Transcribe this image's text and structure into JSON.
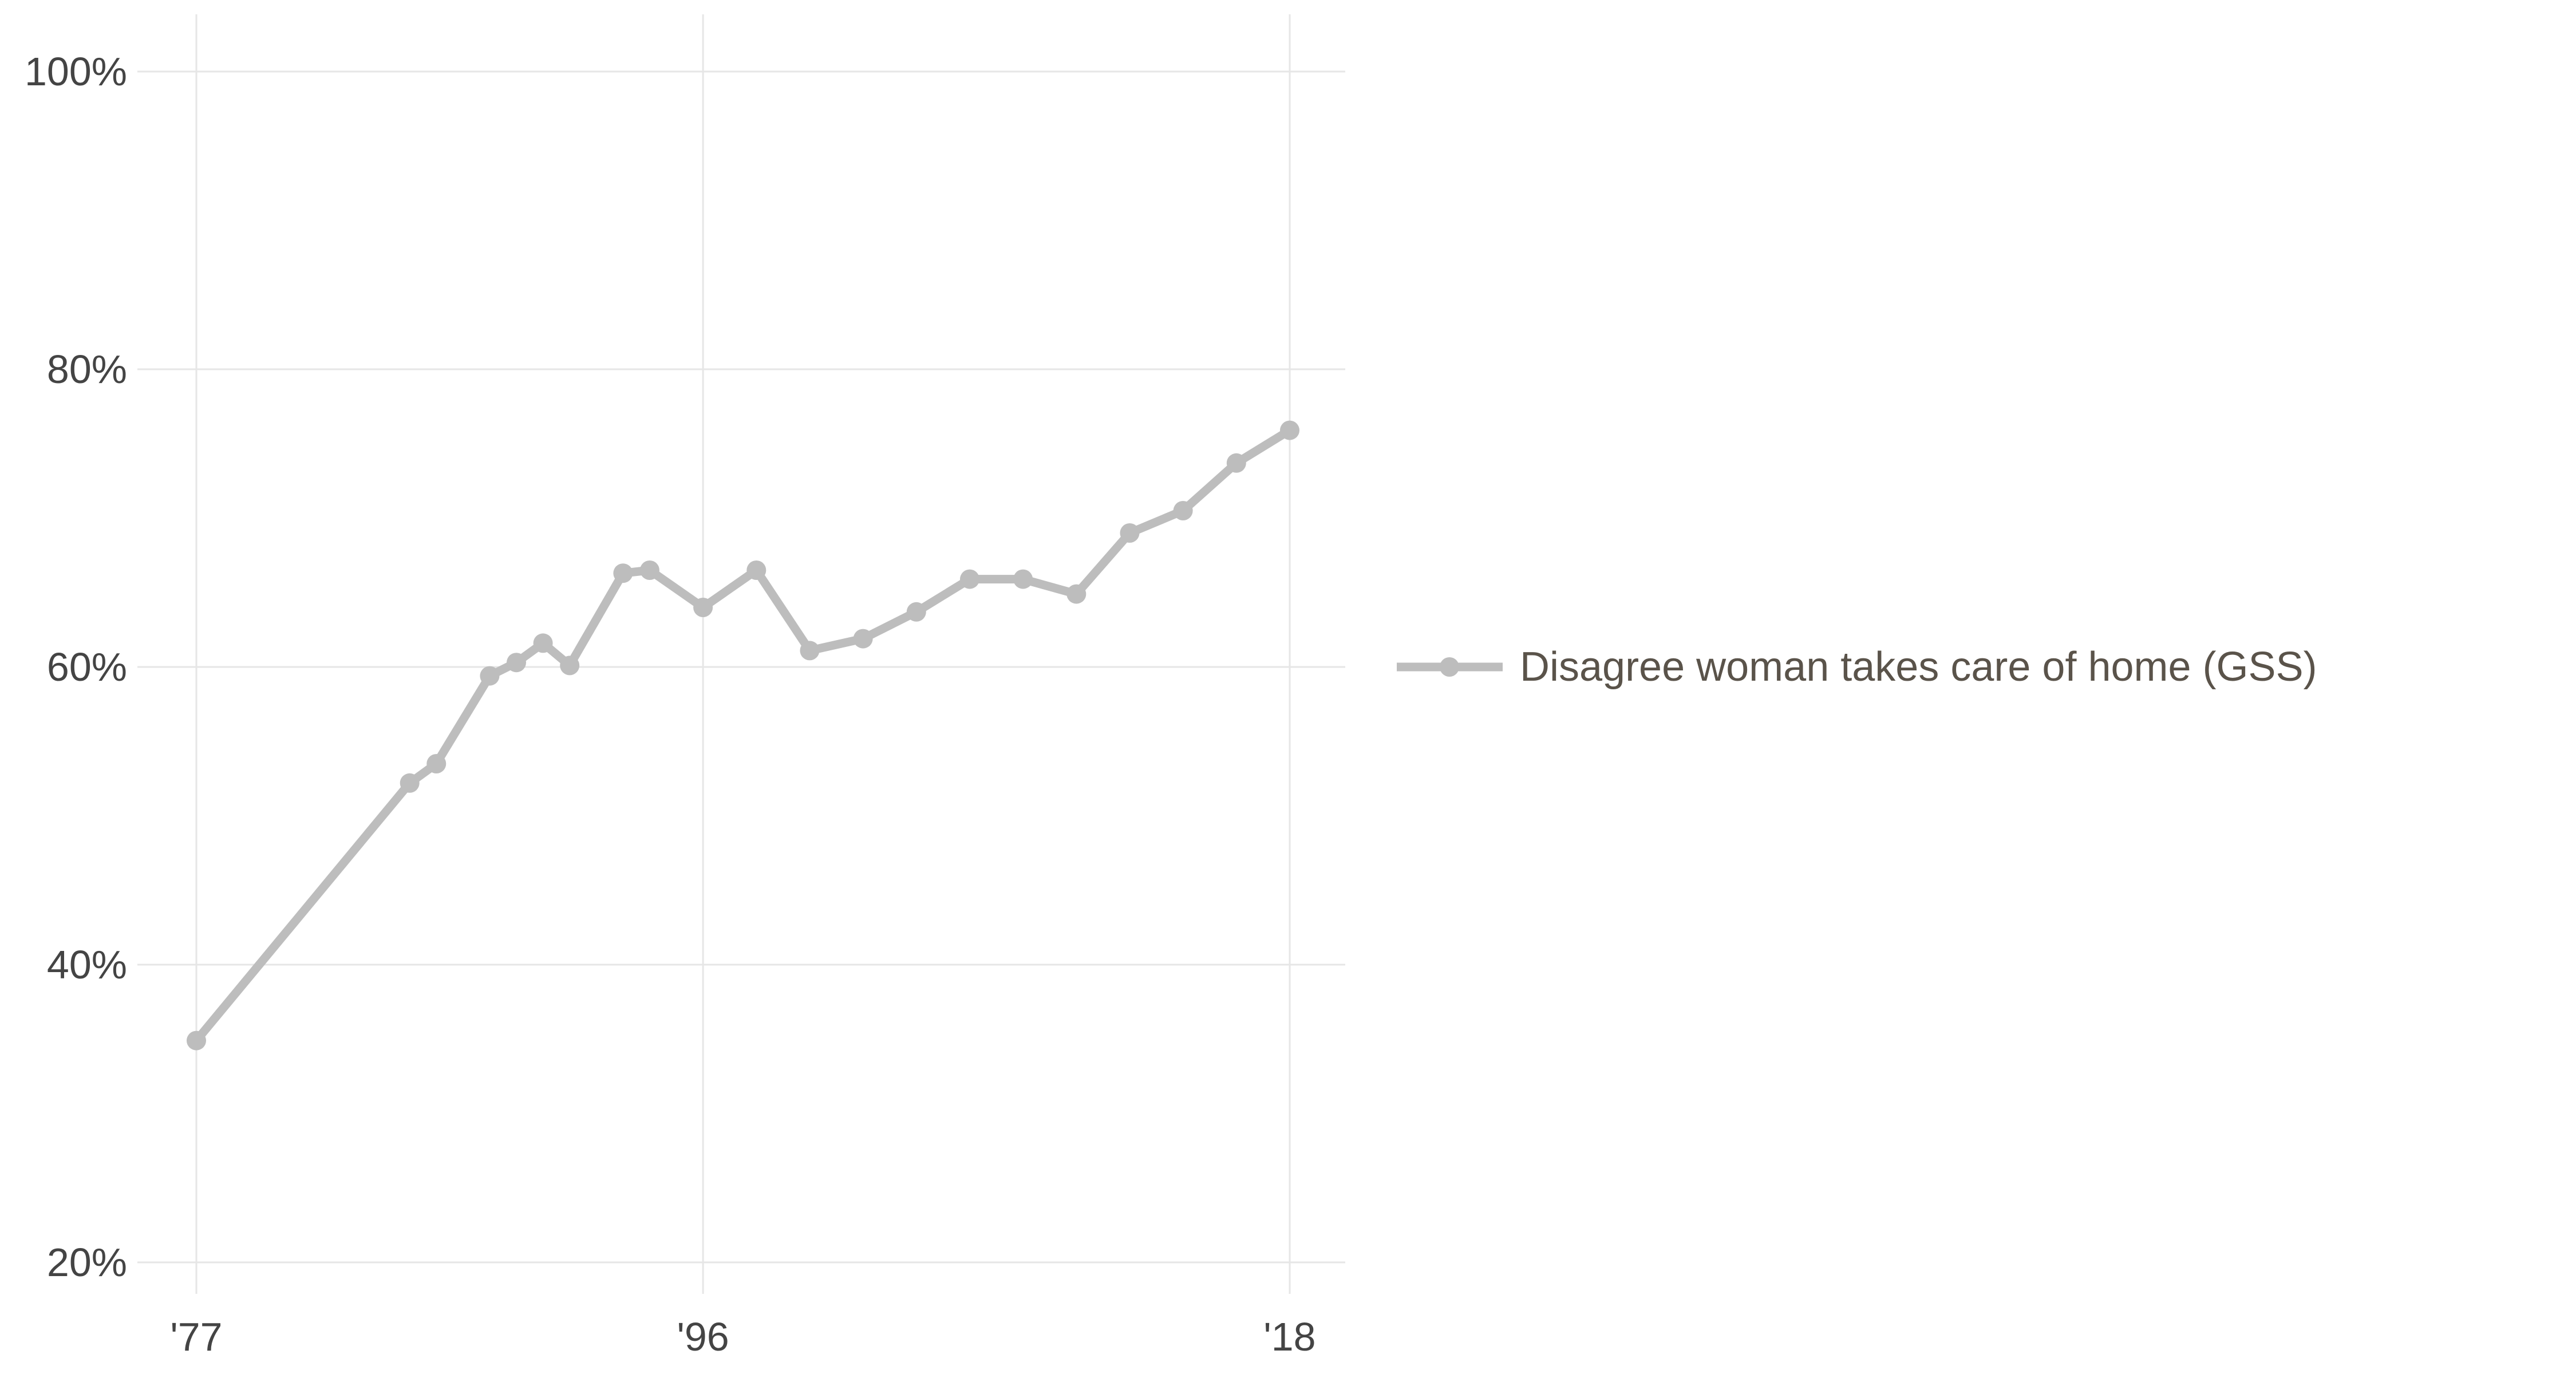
{
  "chart_data": {
    "type": "line",
    "title": "",
    "xlabel": "",
    "ylabel": "",
    "xlim": [
      1977,
      2018
    ],
    "ylim": [
      20,
      100
    ],
    "x_ticks": [
      {
        "value": 1977,
        "label": "'77"
      },
      {
        "value": 1996,
        "label": "'96"
      },
      {
        "value": 2018,
        "label": "'18"
      }
    ],
    "y_ticks": [
      {
        "value": 20,
        "label": "20%"
      },
      {
        "value": 40,
        "label": "40%"
      },
      {
        "value": 60,
        "label": "60%"
      },
      {
        "value": 80,
        "label": "80%"
      },
      {
        "value": 100,
        "label": "100%"
      }
    ],
    "grid": true,
    "legend_position": "right",
    "series": [
      {
        "name": "Disagree woman takes care of home (GSS)",
        "color": "#bdbdbd",
        "x": [
          1977,
          1985,
          1986,
          1988,
          1989,
          1990,
          1991,
          1993,
          1994,
          1996,
          1998,
          2000,
          2002,
          2004,
          2006,
          2008,
          2010,
          2012,
          2014,
          2016,
          2018
        ],
        "y": [
          34.9,
          52.2,
          53.5,
          59.4,
          60.3,
          61.6,
          60.1,
          66.3,
          66.5,
          64.0,
          66.5,
          61.1,
          61.9,
          63.7,
          65.9,
          65.9,
          64.9,
          69.0,
          70.5,
          73.7,
          75.9
        ]
      }
    ]
  }
}
